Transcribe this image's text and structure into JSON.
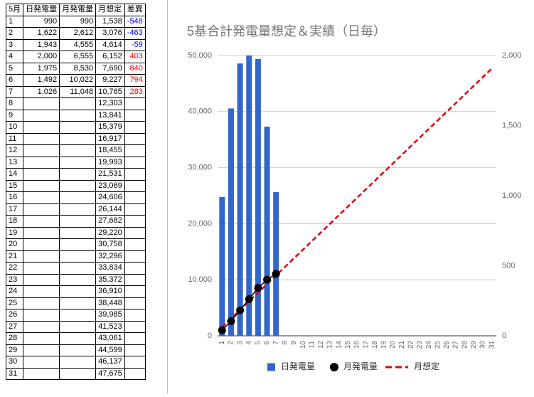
{
  "table": {
    "header": [
      "5月",
      "日発電量",
      "月発電量",
      "月想定",
      "差異"
    ],
    "rows": [
      [
        "1",
        "990",
        "990",
        "1,538",
        "-548"
      ],
      [
        "2",
        "1,622",
        "2,612",
        "3,076",
        "-463"
      ],
      [
        "3",
        "1,943",
        "4,555",
        "4,614",
        "-59"
      ],
      [
        "4",
        "2,000",
        "6,555",
        "6,152",
        "403"
      ],
      [
        "5",
        "1,975",
        "8,530",
        "7,690",
        "840"
      ],
      [
        "6",
        "1,492",
        "10,022",
        "9,227",
        "794"
      ],
      [
        "7",
        "1,026",
        "11,048",
        "10,765",
        "283"
      ],
      [
        "8",
        null,
        null,
        "12,303",
        null
      ],
      [
        "9",
        null,
        null,
        "13,841",
        null
      ],
      [
        "10",
        null,
        null,
        "15,379",
        null
      ],
      [
        "11",
        null,
        null,
        "16,917",
        null
      ],
      [
        "12",
        null,
        null,
        "18,455",
        null
      ],
      [
        "13",
        null,
        null,
        "19,993",
        null
      ],
      [
        "14",
        null,
        null,
        "21,531",
        null
      ],
      [
        "15",
        null,
        null,
        "23,069",
        null
      ],
      [
        "16",
        null,
        null,
        "24,606",
        null
      ],
      [
        "17",
        null,
        null,
        "26,144",
        null
      ],
      [
        "18",
        null,
        null,
        "27,682",
        null
      ],
      [
        "19",
        null,
        null,
        "29,220",
        null
      ],
      [
        "20",
        null,
        null,
        "30,758",
        null
      ],
      [
        "21",
        null,
        null,
        "32,296",
        null
      ],
      [
        "22",
        null,
        null,
        "33,834",
        null
      ],
      [
        "23",
        null,
        null,
        "35,372",
        null
      ],
      [
        "24",
        null,
        null,
        "36,910",
        null
      ],
      [
        "25",
        null,
        null,
        "38,448",
        null
      ],
      [
        "26",
        null,
        null,
        "39,985",
        null
      ],
      [
        "27",
        null,
        null,
        "41,523",
        null
      ],
      [
        "28",
        null,
        null,
        "43,061",
        null
      ],
      [
        "29",
        null,
        null,
        "44,599",
        null
      ],
      [
        "30",
        null,
        null,
        "46,137",
        null
      ],
      [
        "31",
        null,
        null,
        "47,675",
        null
      ]
    ],
    "negative_color": "#0000ff",
    "positive_color": "#ff0000"
  },
  "chart_data": {
    "type": "combo",
    "title": "5基合計発電量想定＆実績（日毎）",
    "categories": [
      "1",
      "2",
      "3",
      "4",
      "5",
      "6",
      "7",
      "8",
      "9",
      "10",
      "11",
      "12",
      "13",
      "14",
      "15",
      "16",
      "17",
      "18",
      "19",
      "20",
      "21",
      "22",
      "23",
      "24",
      "25",
      "26",
      "27",
      "28",
      "29",
      "30",
      "31"
    ],
    "series": [
      {
        "name": "日発電量",
        "type": "bar",
        "axis": "y2",
        "color": "#3366cc",
        "values": [
          990,
          1622,
          1943,
          2000,
          1975,
          1492,
          1026,
          null,
          null,
          null,
          null,
          null,
          null,
          null,
          null,
          null,
          null,
          null,
          null,
          null,
          null,
          null,
          null,
          null,
          null,
          null,
          null,
          null,
          null,
          null,
          null
        ]
      },
      {
        "name": "月発電量",
        "type": "line",
        "marker": "circle",
        "color": "#000000",
        "values": [
          990,
          2612,
          4555,
          6555,
          8530,
          10022,
          11048,
          null,
          null,
          null,
          null,
          null,
          null,
          null,
          null,
          null,
          null,
          null,
          null,
          null,
          null,
          null,
          null,
          null,
          null,
          null,
          null,
          null,
          null,
          null,
          null
        ]
      },
      {
        "name": "月想定",
        "type": "line",
        "dash": true,
        "color": "#e60000",
        "values": [
          1538,
          3076,
          4614,
          6152,
          7690,
          9227,
          10765,
          12303,
          13841,
          15379,
          16917,
          18455,
          19993,
          21531,
          23069,
          24606,
          26144,
          27682,
          29220,
          30758,
          32296,
          33834,
          35372,
          36910,
          38448,
          39985,
          41523,
          43061,
          44599,
          46137,
          47675
        ]
      }
    ],
    "ylim": [
      0,
      50000
    ],
    "yticks": [
      0,
      {
        "value": 10000,
        "label": "10,000"
      },
      {
        "value": 20000,
        "label": "20,000"
      },
      {
        "value": 30000,
        "label": "30,000"
      },
      {
        "value": 40000,
        "label": "40,000"
      },
      {
        "value": 50000,
        "label": "50,000"
      }
    ],
    "y2lim": [
      0,
      2000
    ],
    "y2ticks": [
      0,
      500,
      {
        "value": 1000,
        "label": "1,000"
      },
      {
        "value": 1500,
        "label": "1,500"
      },
      {
        "value": 2000,
        "label": "2,000"
      }
    ],
    "grid": true,
    "legend": "bottom"
  }
}
